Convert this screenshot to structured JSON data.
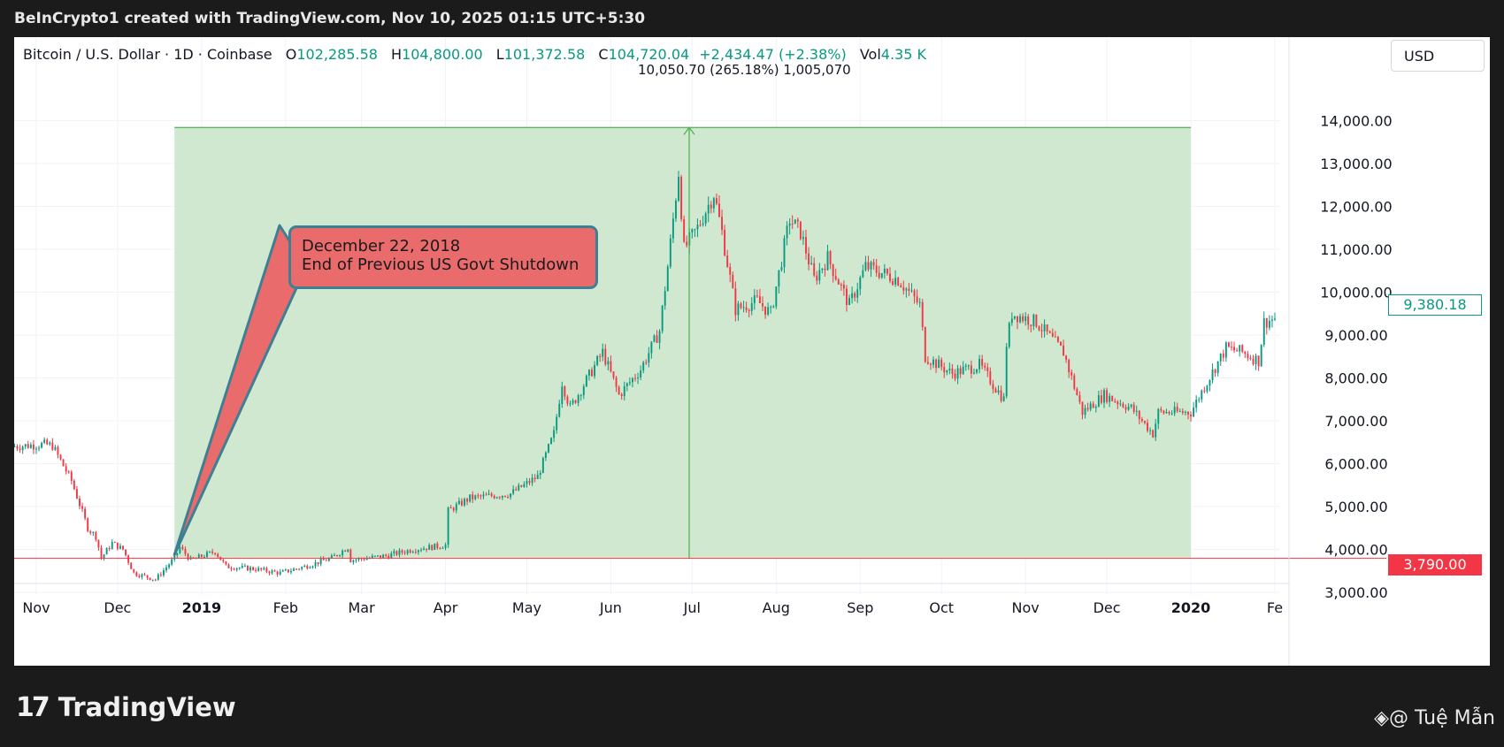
{
  "header": {
    "credit": "BeInCrypto1 created with TradingView.com, Nov 10, 2025 01:15 UTC+5:30"
  },
  "legend": {
    "symbol": "Bitcoin / U.S. Dollar · 1D · Coinbase",
    "open_label": "O",
    "open": "102,285.58",
    "high_label": "H",
    "high": "104,800.00",
    "low_label": "L",
    "low": "101,372.58",
    "close_label": "C",
    "close": "104,720.04",
    "change": "+2,434.47 (+2.38%)",
    "vol_label": "Vol",
    "vol": "4.35 K"
  },
  "currency": "USD",
  "measure_label": "10,050.70 (265.18%) 1,005,070",
  "callout": {
    "line1": "December 22, 2018",
    "line2": "End of Previous US Govt Shutdown"
  },
  "price_tags": {
    "current": "9,380.18",
    "base": "3,790.00"
  },
  "footer": {
    "logo_text": "TradingView",
    "watermark": "◈@ Tuệ Mẫn"
  },
  "colors": {
    "up": "#089981",
    "down": "#f23645",
    "range_fill": "#cfe8cf",
    "range_line": "#4caf50"
  },
  "chart_data": {
    "type": "candlestick",
    "title": "Bitcoin / U.S. Dollar · 1D · Coinbase",
    "ylim": [
      2400,
      15000
    ],
    "y_ticks": [
      3000,
      4000,
      5000,
      6000,
      7000,
      8000,
      9000,
      10000,
      11000,
      12000,
      13000,
      14000
    ],
    "y_tick_labels": [
      "3,000.00",
      "4,000.00",
      "5,000.00",
      "6,000.00",
      "7,000.00",
      "8,000.00",
      "9,000.00",
      "10,000.00",
      "11,000.00",
      "12,000.00",
      "13,000.00",
      "14,000.00"
    ],
    "x_labels": [
      {
        "label": "Nov",
        "date": "2018-11-01"
      },
      {
        "label": "Dec",
        "date": "2018-12-01"
      },
      {
        "label": "2019",
        "date": "2019-01-01",
        "bold": true
      },
      {
        "label": "Feb",
        "date": "2019-02-01"
      },
      {
        "label": "Mar",
        "date": "2019-03-01"
      },
      {
        "label": "Apr",
        "date": "2019-04-01"
      },
      {
        "label": "May",
        "date": "2019-05-01"
      },
      {
        "label": "Jun",
        "date": "2019-06-01"
      },
      {
        "label": "Jul",
        "date": "2019-07-01"
      },
      {
        "label": "Aug",
        "date": "2019-08-01"
      },
      {
        "label": "Sep",
        "date": "2019-09-01"
      },
      {
        "label": "Oct",
        "date": "2019-10-01"
      },
      {
        "label": "Nov",
        "date": "2019-11-01"
      },
      {
        "label": "Dec",
        "date": "2019-12-01"
      },
      {
        "label": "2020",
        "date": "2020-01-01",
        "bold": true
      },
      {
        "label": "Fe",
        "date": "2020-02-01"
      }
    ],
    "date_range": [
      "2018-10-01",
      "2020-02-01"
    ],
    "price_series": [
      [
        "2018-10-01",
        6300
      ],
      [
        "2018-10-18",
        6380
      ],
      [
        "2018-11-04",
        6450
      ],
      [
        "2018-11-07",
        6420
      ],
      [
        "2018-11-14",
        5600
      ],
      [
        "2018-11-20",
        4500
      ],
      [
        "2018-11-23",
        4300
      ],
      [
        "2018-11-25",
        3800
      ],
      [
        "2018-11-29",
        4150
      ],
      [
        "2018-12-03",
        4000
      ],
      [
        "2018-12-07",
        3450
      ],
      [
        "2018-12-15",
        3300
      ],
      [
        "2018-12-22",
        3800
      ],
      [
        "2018-12-24",
        4050
      ],
      [
        "2018-12-28",
        3750
      ],
      [
        "2019-01-06",
        3950
      ],
      [
        "2019-01-10",
        3600
      ],
      [
        "2019-01-20",
        3550
      ],
      [
        "2019-01-30",
        3450
      ],
      [
        "2019-02-08",
        3600
      ],
      [
        "2019-02-18",
        3800
      ],
      [
        "2019-02-24",
        4050
      ],
      [
        "2019-02-25",
        3750
      ],
      [
        "2019-03-10",
        3850
      ],
      [
        "2019-03-20",
        4000
      ],
      [
        "2019-04-01",
        4100
      ],
      [
        "2019-04-02",
        4900
      ],
      [
        "2019-04-10",
        5200
      ],
      [
        "2019-04-25",
        5300
      ],
      [
        "2019-05-05",
        5700
      ],
      [
        "2019-05-11",
        6700
      ],
      [
        "2019-05-14",
        7900
      ],
      [
        "2019-05-17",
        7300
      ],
      [
        "2019-05-29",
        8600
      ],
      [
        "2019-06-04",
        7600
      ],
      [
        "2019-06-12",
        8200
      ],
      [
        "2019-06-19",
        9100
      ],
      [
        "2019-06-22",
        10600
      ],
      [
        "2019-06-26",
        12800
      ],
      [
        "2019-06-28",
        11000
      ],
      [
        "2019-07-03",
        11500
      ],
      [
        "2019-07-09",
        12300
      ],
      [
        "2019-07-12",
        11400
      ],
      [
        "2019-07-17",
        9600
      ],
      [
        "2019-07-25",
        9800
      ],
      [
        "2019-07-30",
        9500
      ],
      [
        "2019-08-06",
        11700
      ],
      [
        "2019-08-10",
        11400
      ],
      [
        "2019-08-15",
        10300
      ],
      [
        "2019-08-20",
        10800
      ],
      [
        "2019-08-28",
        9700
      ],
      [
        "2019-09-03",
        10600
      ],
      [
        "2019-09-15",
        10300
      ],
      [
        "2019-09-23",
        9700
      ],
      [
        "2019-09-25",
        8500
      ],
      [
        "2019-10-05",
        8100
      ],
      [
        "2019-10-15",
        8300
      ],
      [
        "2019-10-24",
        7500
      ],
      [
        "2019-10-25",
        8800
      ],
      [
        "2019-10-27",
        9500
      ],
      [
        "2019-11-05",
        9300
      ],
      [
        "2019-11-15",
        8600
      ],
      [
        "2019-11-22",
        7200
      ],
      [
        "2019-11-30",
        7600
      ],
      [
        "2019-12-10",
        7300
      ],
      [
        "2019-12-18",
        6700
      ],
      [
        "2019-12-20",
        7200
      ],
      [
        "2020-01-01",
        7200
      ],
      [
        "2020-01-06",
        7800
      ],
      [
        "2020-01-14",
        8700
      ],
      [
        "2020-01-20",
        8600
      ],
      [
        "2020-01-26",
        8400
      ],
      [
        "2020-01-28",
        9300
      ],
      [
        "2020-02-01",
        9380
      ]
    ],
    "price_range": {
      "start_date": "2018-12-22",
      "end_date": "2020-01-01",
      "low": 3790,
      "high": 13840,
      "change": "10,050.70 (265.18%) 1,005,070"
    },
    "horizontal_line": 3790,
    "last_price": 9380.18,
    "grid": true,
    "axis_side": "right"
  }
}
